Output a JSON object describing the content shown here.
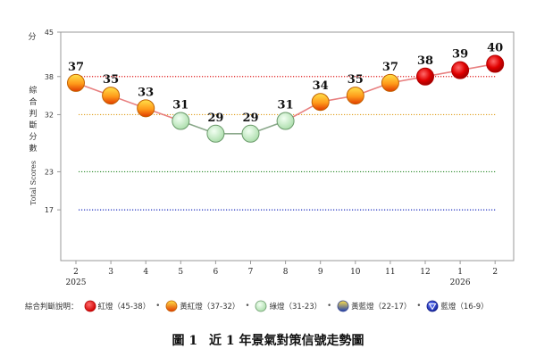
{
  "chart_data": {
    "type": "line",
    "y_unit_label": "分",
    "ylabel": "綜合判斷分數",
    "ylabel_en": "Total Scores",
    "ylim": [
      9,
      45
    ],
    "yticks": [
      45,
      38,
      32,
      23,
      17
    ],
    "x_tick_labels": [
      "2",
      "3",
      "4",
      "5",
      "6",
      "7",
      "8",
      "9",
      "10",
      "11",
      "12",
      "1",
      "2"
    ],
    "year_labels": [
      {
        "index": 0,
        "label": "2025"
      },
      {
        "index": 11,
        "label": "2026"
      }
    ],
    "values": [
      37,
      35,
      33,
      31,
      29,
      29,
      31,
      34,
      35,
      37,
      38,
      39,
      40
    ],
    "thresholds": [
      {
        "value": 38,
        "color": "#e02020"
      },
      {
        "value": 32,
        "color": "#e0a020"
      },
      {
        "value": 23,
        "color": "#2a8a2a"
      },
      {
        "value": 17,
        "color": "#2030c0"
      }
    ],
    "line_colors": {
      "red_zone": "#e88080",
      "green_zone": "#8aa88a"
    }
  },
  "legend": {
    "title": "綜合判斷說明：",
    "items": [
      {
        "label": "紅燈（45-38）",
        "icon": "red-circle",
        "color": "#e00000"
      },
      {
        "label": "黃紅燈（37-32）",
        "icon": "yellow-red-circle",
        "color": "#f5a000"
      },
      {
        "label": "綠燈（31-23）",
        "icon": "green-circle",
        "color": "#b8e8b8"
      },
      {
        "label": "黃藍燈（22-17）",
        "icon": "yellow-blue-circle",
        "color": "#4060c0"
      },
      {
        "label": "藍燈（16-9）",
        "icon": "blue-triangle-circle",
        "color": "#1a30c0"
      }
    ],
    "separator": "•"
  },
  "caption": {
    "figure": "圖 1",
    "title": "近 1 年景氣對策信號走勢圖"
  }
}
